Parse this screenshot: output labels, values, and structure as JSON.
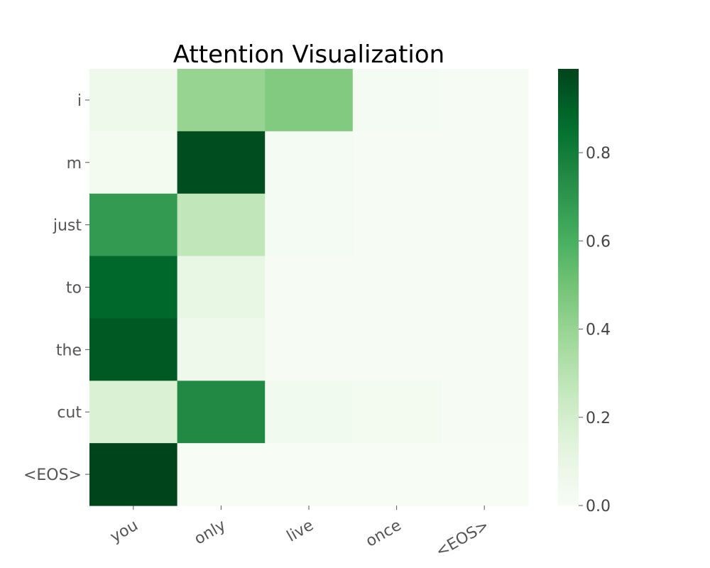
{
  "chart_data": {
    "type": "heatmap",
    "title": "Attention Visualization",
    "x_labels": [
      "you",
      "only",
      "live",
      "once",
      "<EOS>"
    ],
    "y_labels": [
      "i",
      "m",
      "just",
      "to",
      "the",
      "cut",
      "<EOS>"
    ],
    "values": [
      [
        0.06,
        0.4,
        0.46,
        0.02,
        0.01
      ],
      [
        0.03,
        0.96,
        0.02,
        0.01,
        0.01
      ],
      [
        0.68,
        0.27,
        0.02,
        0.01,
        0.01
      ],
      [
        0.88,
        0.1,
        0.01,
        0.01,
        0.01
      ],
      [
        0.93,
        0.06,
        0.01,
        0.01,
        0.01
      ],
      [
        0.17,
        0.75,
        0.04,
        0.03,
        0.01
      ],
      [
        0.99,
        0.0,
        0.0,
        0.0,
        0.0
      ]
    ],
    "colormap": "Greens",
    "colorbar": {
      "min": 0.0,
      "max": 0.99,
      "ticks": [
        0.0,
        0.2,
        0.4,
        0.6,
        0.8
      ],
      "tick_labels": [
        "0.0",
        "0.2",
        "0.4",
        "0.6",
        "0.8"
      ]
    },
    "grid": false
  }
}
